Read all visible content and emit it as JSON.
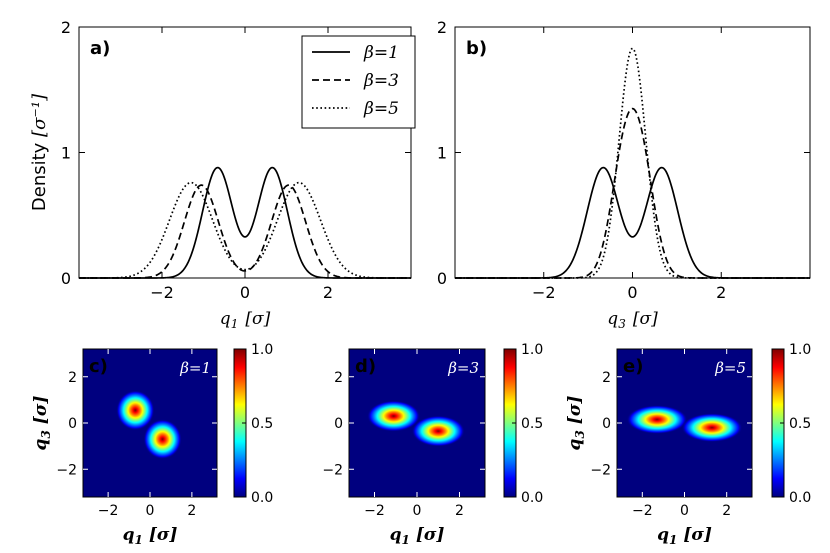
{
  "figure": {
    "colormap": [
      "#00007f",
      "#0000ff",
      "#007fff",
      "#00ffff",
      "#7fff7f",
      "#ffff00",
      "#ff7f00",
      "#ff0000",
      "#7f0000"
    ]
  },
  "chart_data": [
    {
      "id": "a",
      "type": "line",
      "panel_label": "a)",
      "ylabel": "Density",
      "ylabel_unit": "[σ⁻¹]",
      "xlabel_var": "q",
      "xlabel_sub": "1",
      "xlabel_unit": "[σ]",
      "xlim": [
        -4,
        4
      ],
      "ylim": [
        0,
        2
      ],
      "xticks": [
        -2,
        0,
        2
      ],
      "yticks": [
        0,
        1,
        2
      ],
      "legend": {
        "placement": "top-right"
      },
      "series": [
        {
          "name": "β=1",
          "legend_label": "β=1",
          "style": "solid",
          "components": [
            {
              "mu": -0.66,
              "sigma": 0.36
            },
            {
              "mu": 0.66,
              "sigma": 0.36
            }
          ],
          "peak": 0.88
        },
        {
          "name": "β=3",
          "legend_label": "β=3",
          "style": "dashed",
          "components": [
            {
              "mu": -1.05,
              "sigma": 0.41
            },
            {
              "mu": 1.05,
              "sigma": 0.41
            }
          ],
          "peak": 0.74
        },
        {
          "name": "β=5",
          "legend_label": "β=5",
          "style": "dotted",
          "components": [
            {
              "mu": -1.3,
              "sigma": 0.52
            },
            {
              "mu": 1.3,
              "sigma": 0.52
            }
          ],
          "peak": 0.76
        }
      ]
    },
    {
      "id": "b",
      "type": "line",
      "panel_label": "b)",
      "xlabel_var": "q",
      "xlabel_sub": "3",
      "xlabel_unit": "[σ]",
      "xlim": [
        -4,
        4
      ],
      "ylim": [
        0,
        2
      ],
      "xticks": [
        -2,
        0,
        2
      ],
      "yticks": [
        0,
        1,
        2
      ],
      "series": [
        {
          "name": "β=1",
          "style": "solid",
          "components": [
            {
              "mu": -0.66,
              "sigma": 0.36
            },
            {
              "mu": 0.66,
              "sigma": 0.36
            }
          ],
          "peak": 0.88
        },
        {
          "name": "β=3",
          "style": "dashed",
          "components": [
            {
              "mu": -0.2,
              "sigma": 0.3
            },
            {
              "mu": 0.2,
              "sigma": 0.3
            }
          ],
          "peak": 1.35
        },
        {
          "name": "β=5",
          "style": "dotted",
          "components": [
            {
              "mu": 0,
              "sigma": 0.3
            }
          ],
          "peak": 1.83
        }
      ]
    },
    {
      "id": "c",
      "type": "heatmap",
      "panel_label": "c)",
      "beta_label": "β=1",
      "xlabel_var": "q",
      "xlabel_sub": "1",
      "xlabel_unit": "[σ]",
      "ylabel_var": "q",
      "ylabel_sub": "3",
      "ylabel_unit": "[σ]",
      "xlim": [
        -3.2,
        3.2
      ],
      "ylim": [
        -3.2,
        3.2
      ],
      "xticks": [
        -2,
        0,
        2
      ],
      "yticks": [
        -2,
        0,
        2
      ],
      "colorbar_range": [
        0,
        1
      ],
      "colorbar_ticks": [
        "0.0",
        "0.5",
        "1.0"
      ],
      "blobs": [
        {
          "x": -0.7,
          "y": 0.55,
          "sx": 0.38,
          "sy": 0.36
        },
        {
          "x": 0.6,
          "y": -0.7,
          "sx": 0.38,
          "sy": 0.36
        }
      ]
    },
    {
      "id": "d",
      "type": "heatmap",
      "panel_label": "d)",
      "beta_label": "β=3",
      "xlabel_var": "q",
      "xlabel_sub": "1",
      "xlabel_unit": "[σ]",
      "xlim": [
        -3.2,
        3.2
      ],
      "ylim": [
        -3.2,
        3.2
      ],
      "xticks": [
        -2,
        0,
        2
      ],
      "yticks": [
        -2,
        0,
        2
      ],
      "colorbar_range": [
        0,
        1
      ],
      "colorbar_ticks": [
        "0.0",
        "0.5",
        "1.0"
      ],
      "blobs": [
        {
          "x": -1.1,
          "y": 0.3,
          "sx": 0.52,
          "sy": 0.28
        },
        {
          "x": 1.0,
          "y": -0.35,
          "sx": 0.52,
          "sy": 0.28
        }
      ]
    },
    {
      "id": "e",
      "type": "heatmap",
      "panel_label": "e)",
      "beta_label": "β=5",
      "xlabel_var": "q",
      "xlabel_sub": "1",
      "xlabel_unit": "[σ]",
      "ylabel_var": "q",
      "ylabel_sub": "3",
      "ylabel_unit": "[σ]",
      "xlim": [
        -3.2,
        3.2
      ],
      "ylim": [
        -3.2,
        3.2
      ],
      "xticks": [
        -2,
        0,
        2
      ],
      "yticks": [
        -2,
        0,
        2
      ],
      "colorbar_range": [
        0,
        1
      ],
      "colorbar_ticks": [
        "0.0",
        "0.5",
        "1.0"
      ],
      "blobs": [
        {
          "x": -1.3,
          "y": 0.15,
          "sx": 0.6,
          "sy": 0.26
        },
        {
          "x": 1.3,
          "y": -0.2,
          "sx": 0.6,
          "sy": 0.26
        }
      ]
    }
  ]
}
